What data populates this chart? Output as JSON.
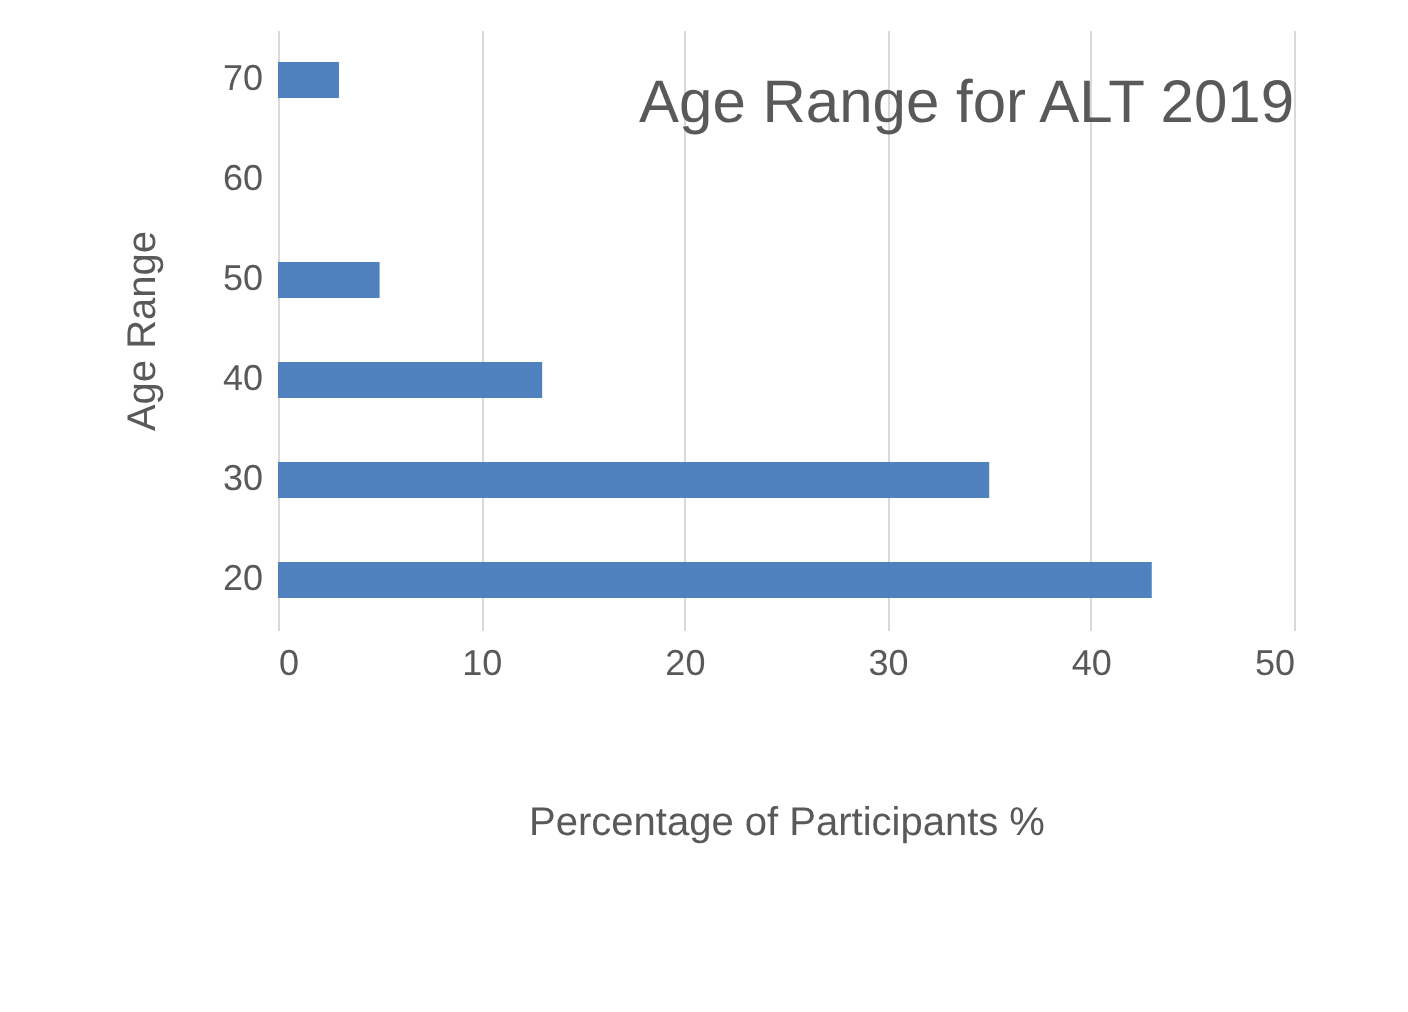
{
  "chart_data": {
    "type": "bar",
    "orientation": "horizontal",
    "title": "Age Range for ALT 2019",
    "xlabel": "Percentage of Participants %",
    "ylabel": "Age Range",
    "categories": [
      "70",
      "60",
      "50",
      "40",
      "30",
      "20"
    ],
    "values": [
      3,
      null,
      5,
      13,
      35,
      43
    ],
    "color": "#4e81bd",
    "xlim": [
      0,
      50
    ],
    "xticks": [
      0,
      10,
      20,
      30,
      40,
      50
    ],
    "grid": "x"
  }
}
